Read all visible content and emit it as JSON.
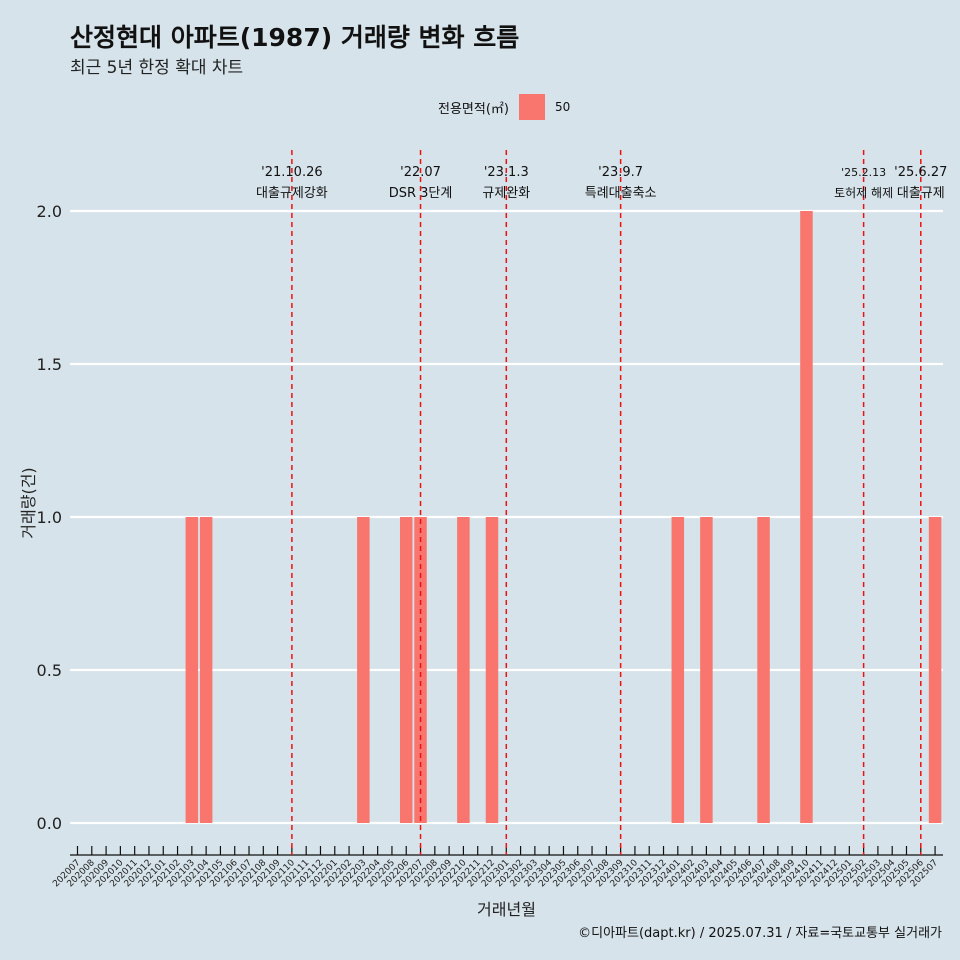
{
  "title": "산정현대 아파트(1987) 거래량 변화 흐름",
  "subtitle": "최근 5년 한정 확대 차트",
  "legend": {
    "title": "전용면적(㎡)",
    "label": "50",
    "color": "#f8766d"
  },
  "caption": "©디아파트(dapt.kr) / 2025.07.31 / 자료=국토교통부 실거래가",
  "chart_data": {
    "type": "bar",
    "xlabel": "거래년월",
    "ylabel": "거래량(건)",
    "ylim": [
      0,
      2
    ],
    "yticks": [
      "0.0",
      "0.5",
      "1.0",
      "1.5",
      "2.0"
    ],
    "categories": [
      "202007",
      "202008",
      "202009",
      "202010",
      "202011",
      "202012",
      "202101",
      "202102",
      "202103",
      "202104",
      "202105",
      "202106",
      "202107",
      "202108",
      "202109",
      "202110",
      "202111",
      "202112",
      "202201",
      "202202",
      "202203",
      "202204",
      "202205",
      "202206",
      "202207",
      "202208",
      "202209",
      "202210",
      "202211",
      "202212",
      "202301",
      "202302",
      "202303",
      "202304",
      "202305",
      "202306",
      "202307",
      "202308",
      "202309",
      "202310",
      "202311",
      "202312",
      "202401",
      "202402",
      "202403",
      "202404",
      "202405",
      "202406",
      "202407",
      "202408",
      "202409",
      "202410",
      "202411",
      "202412",
      "202501",
      "202502",
      "202503",
      "202504",
      "202505",
      "202506",
      "202507"
    ],
    "series": [
      {
        "name": "50",
        "values": [
          0,
          0,
          0,
          0,
          0,
          0,
          0,
          0,
          1,
          1,
          0,
          0,
          0,
          0,
          0,
          0,
          0,
          0,
          0,
          0,
          1,
          0,
          0,
          1,
          1,
          0,
          0,
          1,
          0,
          1,
          0,
          0,
          0,
          0,
          0,
          0,
          0,
          0,
          0,
          0,
          0,
          0,
          1,
          0,
          1,
          0,
          0,
          0,
          1,
          0,
          0,
          2,
          0,
          0,
          0,
          0,
          0,
          0,
          0,
          0,
          1
        ]
      }
    ],
    "events": [
      {
        "date": "202110",
        "line1": "'21.10.26",
        "line2": "대출규제강화"
      },
      {
        "date": "202207",
        "line1": "'22.07",
        "line2": "DSR 3단계"
      },
      {
        "date": "202301",
        "line1": "'23.1.3",
        "line2": "규제완화"
      },
      {
        "date": "202309",
        "line1": "'23.9.7",
        "line2": "특례대출축소"
      },
      {
        "date": "202502",
        "line1": "'25.2.13",
        "line2": "토허제 해제"
      },
      {
        "date": "202506",
        "line1": "'25.6.27",
        "line2": "대출규제"
      }
    ],
    "grid": true,
    "legend_position": "top"
  }
}
